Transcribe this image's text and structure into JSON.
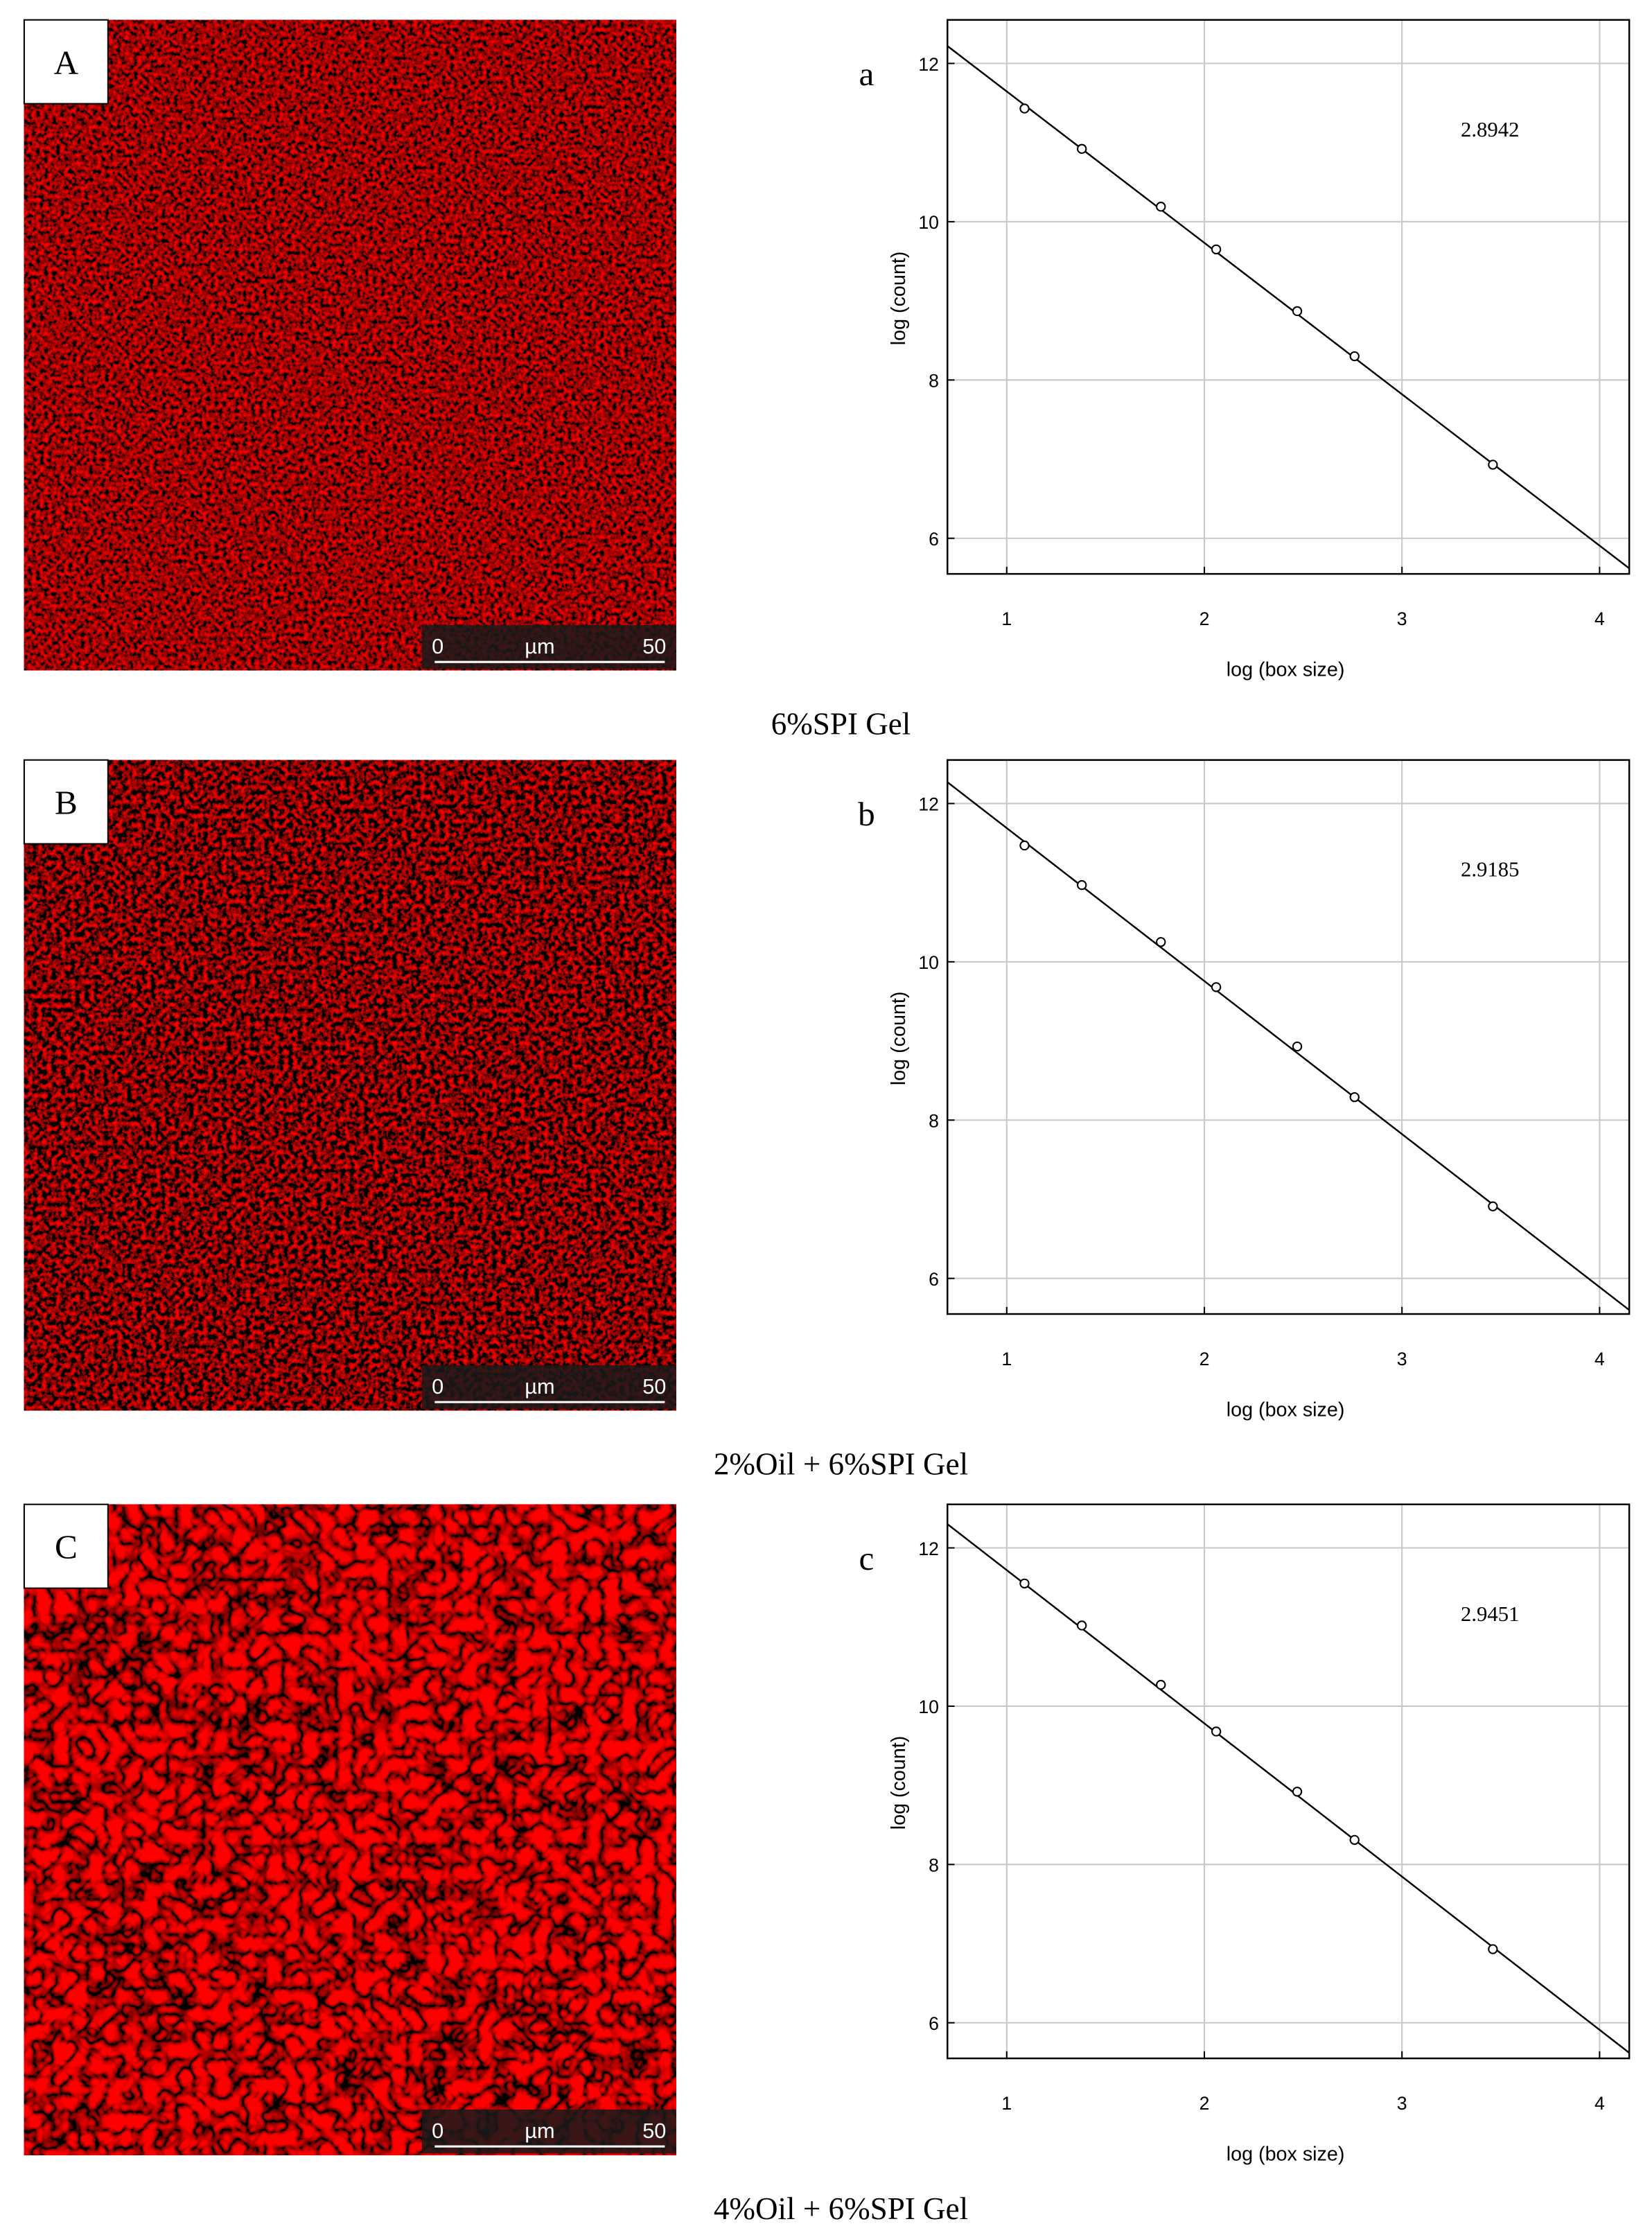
{
  "chart_data": [
    {
      "type": "scatter",
      "panel_label": "a",
      "annotation": "2.8942",
      "x_label": "log (box size)",
      "y_label": "log (count)",
      "x": [
        1.09,
        1.38,
        1.78,
        2.06,
        2.47,
        2.76,
        3.46
      ],
      "values": [
        11.43,
        10.92,
        10.19,
        9.65,
        8.87,
        8.3,
        6.93
      ],
      "fit_line": {
        "x": [
          0.7,
          4.15
        ],
        "values": [
          12.22,
          5.62
        ]
      },
      "xlim": [
        0.7,
        4.15
      ],
      "ylim": [
        5.55,
        12.55
      ],
      "xticks": [
        1,
        2,
        3,
        4
      ],
      "yticks": [
        6,
        8,
        10,
        12
      ],
      "grid": true,
      "color": "#000000"
    },
    {
      "type": "scatter",
      "panel_label": "b",
      "annotation": "2.9185",
      "x_label": "log (box size)",
      "y_label": "log (count)",
      "x": [
        1.09,
        1.38,
        1.78,
        2.06,
        2.47,
        2.76,
        3.46
      ],
      "values": [
        11.47,
        10.97,
        10.25,
        9.68,
        8.93,
        8.29,
        6.91
      ],
      "fit_line": {
        "x": [
          0.7,
          4.15
        ],
        "values": [
          12.27,
          5.6
        ]
      },
      "xlim": [
        0.7,
        4.15
      ],
      "ylim": [
        5.55,
        12.55
      ],
      "xticks": [
        1,
        2,
        3,
        4
      ],
      "yticks": [
        6,
        8,
        10,
        12
      ],
      "grid": true,
      "color": "#000000"
    },
    {
      "type": "scatter",
      "panel_label": "c",
      "annotation": "2.9451",
      "x_label": "log (box size)",
      "y_label": "log (count)",
      "x": [
        1.09,
        1.38,
        1.78,
        2.06,
        2.47,
        2.76,
        3.46
      ],
      "values": [
        11.55,
        11.02,
        10.27,
        9.68,
        8.92,
        8.31,
        6.93
      ],
      "fit_line": {
        "x": [
          0.7,
          4.15
        ],
        "values": [
          12.3,
          5.62
        ]
      },
      "xlim": [
        0.7,
        4.15
      ],
      "ylim": [
        5.55,
        12.55
      ],
      "xticks": [
        1,
        2,
        3,
        4
      ],
      "yticks": [
        6,
        8,
        10,
        12
      ],
      "grid": true,
      "color": "#000000"
    }
  ],
  "images": [
    {
      "label": "A",
      "scale_bar": [
        "0",
        "µm",
        "50"
      ],
      "caption": "6%SPI Gel"
    },
    {
      "label": "B",
      "scale_bar": [
        "0",
        "µm",
        "50"
      ],
      "caption": "2%Oil + 6%SPI Gel"
    },
    {
      "label": "C",
      "scale_bar": [
        "0",
        "µm",
        "50"
      ],
      "caption": "4%Oil + 6%SPI Gel"
    }
  ]
}
